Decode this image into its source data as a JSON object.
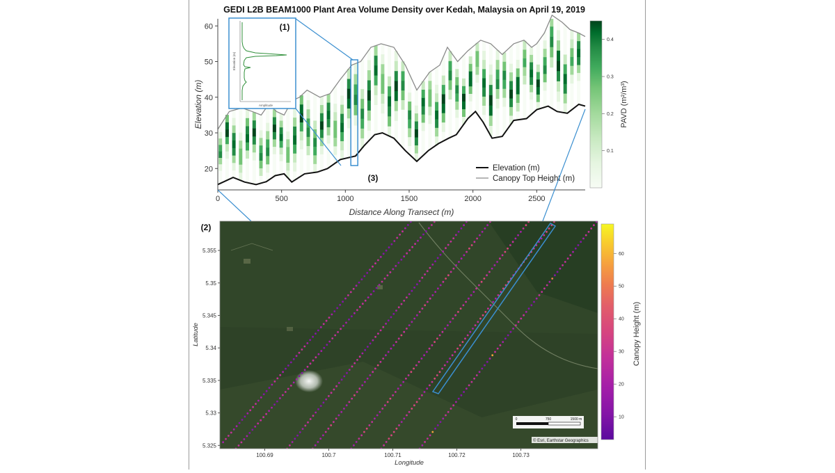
{
  "chart_data": [
    {
      "type": "heatmap",
      "title": "GEDI L2B BEAM1000 Plant Area Volume Density over Kedah, Malaysia on April 19, 2019",
      "xlabel": "Distance Along Transect (m)",
      "ylabel": "Elevation (m)",
      "xlim": [
        0,
        2880
      ],
      "ylim": [
        14,
        62
      ],
      "x_ticks": [
        "0",
        "500",
        "1000",
        "1500",
        "2000",
        "2500"
      ],
      "y_ticks": [
        "20",
        "30",
        "40",
        "50",
        "60"
      ],
      "panel_label": "(3)",
      "legend": [
        "Elevation (m)",
        "Canopy Top Height (m)"
      ],
      "colorbar": {
        "label": "PAVD (m²/m³)",
        "ticks": [
          "0.1",
          "0.2",
          "0.3",
          "0.4"
        ],
        "range": [
          0,
          0.45
        ]
      },
      "series": [
        {
          "name": "Elevation (m)",
          "x": [
            0,
            120,
            210,
            300,
            380,
            450,
            520,
            580,
            680,
            780,
            860,
            960,
            1080,
            1150,
            1230,
            1290,
            1380,
            1470,
            1560,
            1650,
            1730,
            1810,
            1870,
            1960,
            2020,
            2080,
            2150,
            2230,
            2320,
            2420,
            2500,
            2590,
            2660,
            2740,
            2830,
            2880
          ],
          "values": [
            15.5,
            17.5,
            16.2,
            15.5,
            16.3,
            18.0,
            18.5,
            16.2,
            18.5,
            19.0,
            20.0,
            22.5,
            23.5,
            26.5,
            29.5,
            30.0,
            28.5,
            25.0,
            22.0,
            25.0,
            27.0,
            28.5,
            29.5,
            34.0,
            36.0,
            33.0,
            28.5,
            29.0,
            33.5,
            34.0,
            36.5,
            37.5,
            36.0,
            35.5,
            38.0,
            37.5
          ]
        },
        {
          "name": "Canopy Top Height (m)",
          "x": [
            0,
            90,
            190,
            270,
            340,
            400,
            460,
            520,
            580,
            640,
            700,
            800,
            880,
            960,
            1050,
            1120,
            1200,
            1280,
            1380,
            1470,
            1560,
            1660,
            1740,
            1800,
            1880,
            1960,
            2060,
            2140,
            2230,
            2320,
            2400,
            2460,
            2500,
            2560,
            2620,
            2700,
            2760,
            2830,
            2880
          ],
          "values": [
            31,
            36,
            37,
            36,
            35,
            38,
            36,
            35,
            39,
            40,
            42,
            40,
            41,
            45,
            49,
            50,
            54,
            55,
            54,
            49,
            42,
            47,
            49,
            54,
            50,
            53,
            56,
            55,
            52,
            55,
            56,
            54,
            55,
            58,
            63,
            61,
            59,
            58,
            57
          ]
        }
      ],
      "inset": {
        "label": "(1)",
        "xlabel": "Amplitude",
        "ylabel": "Elevation (m)",
        "highlighted_distance": 1070
      }
    },
    {
      "type": "scatter",
      "panel_label": "(2)",
      "xlabel": "Longitude",
      "ylabel": "Latitude",
      "xlim": [
        100.683,
        100.742
      ],
      "ylim": [
        5.3245,
        5.3595
      ],
      "x_ticks": [
        "100.69",
        "100.7",
        "100.71",
        "100.72",
        "100.73"
      ],
      "y_ticks": [
        "5.325",
        "5.33",
        "5.335",
        "5.34",
        "5.345",
        "5.35",
        "5.355"
      ],
      "colorbar": {
        "label": "Canopy Height (m)",
        "ticks": [
          "10",
          "20",
          "30",
          "40",
          "50",
          "60"
        ],
        "range": [
          3,
          69
        ]
      },
      "tracks": [
        {
          "name": "track-1",
          "start": [
            100.6835,
            5.3255
          ],
          "end": [
            100.7128,
            5.3594
          ],
          "height": 17
        },
        {
          "name": "track-2",
          "start": [
            100.6855,
            5.3245
          ],
          "end": [
            100.7165,
            5.3594
          ],
          "height": 20
        },
        {
          "name": "track-3",
          "start": [
            100.6935,
            5.3245
          ],
          "end": [
            100.7215,
            5.3594
          ],
          "height": 19
        },
        {
          "name": "track-4",
          "start": [
            100.6975,
            5.3245
          ],
          "end": [
            100.7252,
            5.3594
          ],
          "height": 22
        },
        {
          "name": "track-5",
          "start": [
            100.7035,
            5.3245
          ],
          "end": [
            100.7312,
            5.3594
          ],
          "height": 24
        },
        {
          "name": "track-6",
          "start": [
            100.7082,
            5.3245
          ],
          "end": [
            100.7352,
            5.3594
          ],
          "height": 27
        },
        {
          "name": "track-7",
          "start": [
            100.7142,
            5.3245
          ],
          "end": [
            100.7418,
            5.3594
          ],
          "height": 18
        }
      ],
      "scalebar": {
        "labels": [
          "0",
          "750",
          "1500 m"
        ]
      },
      "attribution": "© Esri, Earthstar Geographics"
    }
  ],
  "palette": {
    "pavd": [
      "#f7fcf5",
      "#e5f5e0",
      "#c7e9c0",
      "#a1d99b",
      "#74c476",
      "#41ab5d",
      "#238b45",
      "#006d2c",
      "#00441b"
    ],
    "canopy": [
      "#5b0a9e",
      "#8415a7",
      "#a51fa8",
      "#c2309a",
      "#d6457f",
      "#e25e6a",
      "#ee7c4f",
      "#f6a33d",
      "#f8cf2c",
      "#f6f722"
    ],
    "highlight": "#3b8fd0"
  }
}
